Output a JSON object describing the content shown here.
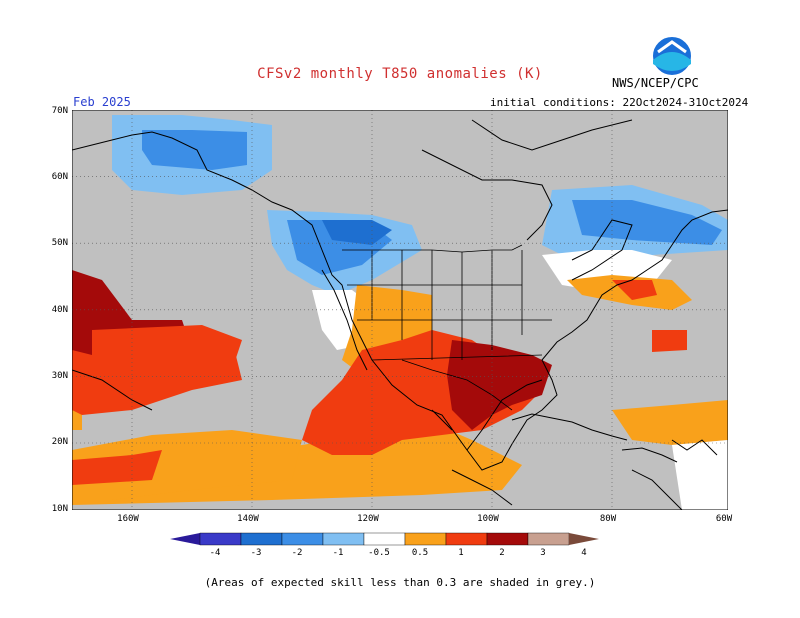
{
  "title": "CFSv2 monthly T850 anomalies (K)",
  "agency": "NWS/NCEP/CPC",
  "logo_text": "NOAA",
  "valid_month": "Feb 2025",
  "initial_conditions": "initial conditions: 22Oct2024-31Oct2024",
  "footnote": "(Areas of expected skill less than 0.3 are shaded in grey.)",
  "lat_labels": [
    "70N",
    "60N",
    "50N",
    "40N",
    "30N",
    "20N",
    "10N"
  ],
  "lon_labels": [
    "160W",
    "140W",
    "120W",
    "100W",
    "80W",
    "60W"
  ],
  "colorbar": {
    "labels": [
      "-4",
      "-3",
      "-2",
      "-1",
      "-0.5",
      "0.5",
      "1",
      "2",
      "3",
      "4"
    ],
    "colors": [
      "#2a1a9a",
      "#3a3ac8",
      "#1e6fd0",
      "#3c8ee6",
      "#80bff2",
      "#ffffff",
      "#f9a11b",
      "#f03c10",
      "#a40a0a",
      "#c8a090",
      "#7a4a3a"
    ]
  },
  "colors": {
    "skill_mask_grey": "#c0c0c0",
    "land_border": "#000000",
    "title_red": "#d03030",
    "month_blue": "#2a3fd0"
  },
  "map": {
    "projection": "lat-lon",
    "lat_range": [
      "10N",
      "70N"
    ],
    "lon_range": [
      "170W",
      "60W"
    ],
    "variable": "T850 anomaly (K)"
  }
}
